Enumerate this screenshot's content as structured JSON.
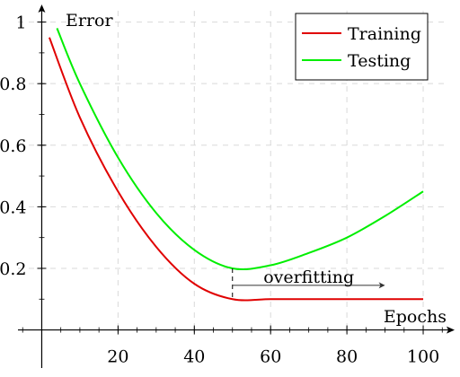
{
  "chart_data": {
    "type": "line",
    "xlabel": "Epochs",
    "ylabel": "Error",
    "xlim": [
      -10,
      108
    ],
    "ylim": [
      -0.01,
      1.06
    ],
    "x_ticks": [
      20,
      40,
      60,
      80,
      100
    ],
    "x_tick_labels": [
      "20",
      "40",
      "60",
      "80",
      "100"
    ],
    "y_ticks": [
      0.2,
      0.4,
      0.6,
      0.8,
      1
    ],
    "y_tick_labels": [
      "0.2",
      "0.4",
      "0.6",
      "0.8",
      "1"
    ],
    "grid": true,
    "legend_position": "top-right",
    "series": [
      {
        "name": "Training",
        "color": "#e00000",
        "x": [
          2,
          10,
          20,
          30,
          40,
          50,
          60,
          70,
          80,
          90,
          100
        ],
        "y": [
          0.95,
          0.69,
          0.45,
          0.27,
          0.15,
          0.1,
          0.1,
          0.1,
          0.1,
          0.1,
          0.1
        ]
      },
      {
        "name": "Testing",
        "color": "#00ee00",
        "x": [
          4,
          10,
          20,
          30,
          40,
          50,
          60,
          70,
          80,
          90,
          100
        ],
        "y": [
          0.98,
          0.8,
          0.56,
          0.38,
          0.26,
          0.2,
          0.21,
          0.25,
          0.3,
          0.37,
          0.45
        ]
      }
    ],
    "annotations": [
      {
        "text": "overfitting",
        "marker_x": 50,
        "marker_y_from": 0.1,
        "marker_y_to": 0.2,
        "arrow_x_from": 50,
        "arrow_x_to": 90,
        "arrow_y": 0.145
      }
    ]
  }
}
